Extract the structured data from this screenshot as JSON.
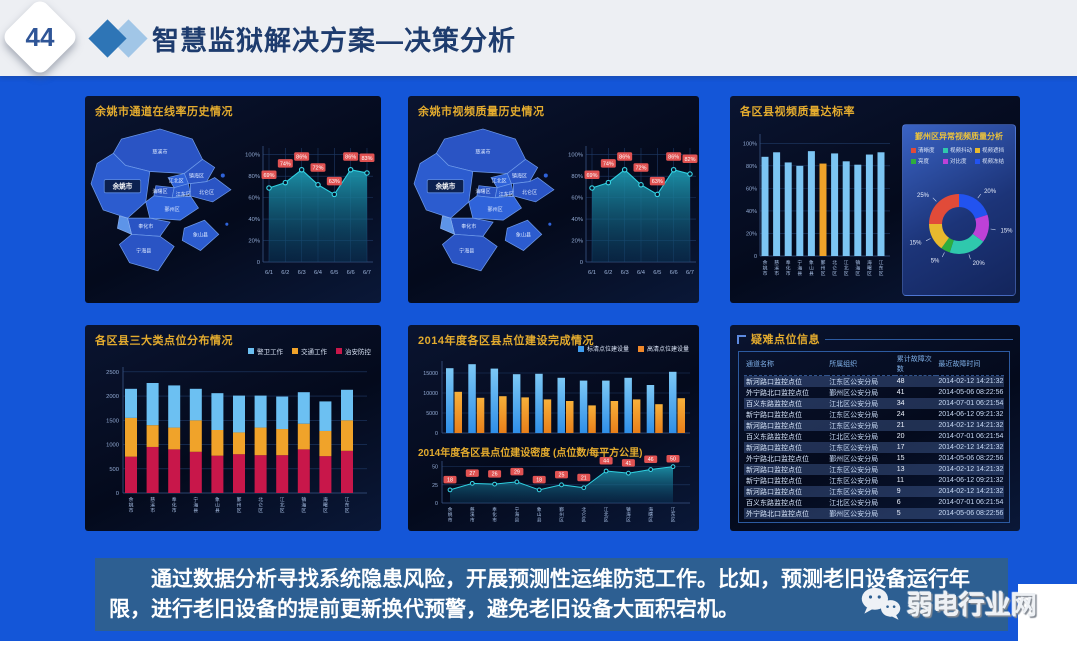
{
  "slide": {
    "number": "44",
    "title": "智慧监狱解决方案—决策分析",
    "body_text": "通过数据分析寻找系统隐患风险，开展预测性运维防范工作。比如，预测老旧设备运行年限，进行老旧设备的提前更新换代预警，避免老旧设备大面积宕机。",
    "watermark": "弱电行业网"
  },
  "colors": {
    "slide_blue": "#1456d8",
    "header_gray": "#edeff3",
    "title_navy": "#1e3c6e",
    "accent_yellow": "#e3ab2e",
    "note_blue": "#2d5f92",
    "panel_navy": "#060d20",
    "teal_line": "#2fd0e0",
    "label_red": "#e05252",
    "bar_blue": "#7cc5f3",
    "bar_orange": "#f0a32a",
    "crimson": "#c8174a",
    "sky_blue": "#6cc0f2",
    "sd_blue": "#3f9def",
    "hd_orange": "#f0882a"
  },
  "map": {
    "labels": [
      "慈溪市",
      "余姚市",
      "镇海区",
      "江北区",
      "海曙区",
      "江东区",
      "北仑区",
      "鄞州区",
      "奉化市",
      "象山县",
      "宁海县"
    ],
    "highlight": "余姚市"
  },
  "chart_data": [
    {
      "id": "channel-online-trend",
      "title": "余姚市通道在线率历史情况",
      "type": "area",
      "x": [
        "6/1",
        "6/2",
        "6/3",
        "6/4",
        "6/5",
        "6/6",
        "6/7"
      ],
      "values": [
        69,
        74,
        86,
        72,
        63,
        86,
        83
      ],
      "unit": "%",
      "ylim": [
        0,
        100
      ],
      "yticks": [
        {
          "v": 100,
          "t": "100%"
        },
        {
          "v": 80,
          "t": "80%"
        },
        {
          "v": 60,
          "t": "60%"
        },
        {
          "v": 40,
          "t": "40%"
        },
        {
          "v": 20,
          "t": "20%"
        },
        {
          "v": 0,
          "t": "0"
        }
      ],
      "grid": true,
      "legend": "none"
    },
    {
      "id": "video-quality-trend",
      "title": "余姚市视频质量历史情况",
      "type": "area",
      "x": [
        "6/1",
        "6/2",
        "6/3",
        "6/4",
        "6/5",
        "6/6",
        "6/7"
      ],
      "values": [
        69,
        74,
        86,
        72,
        63,
        86,
        82
      ],
      "unit": "%",
      "ylim": [
        0,
        100
      ],
      "yticks": [
        {
          "v": 100,
          "t": "100%"
        },
        {
          "v": 80,
          "t": "80%"
        },
        {
          "v": 60,
          "t": "60%"
        },
        {
          "v": 40,
          "t": "40%"
        },
        {
          "v": 20,
          "t": "20%"
        },
        {
          "v": 0,
          "t": "0"
        }
      ],
      "grid": true,
      "legend": "none"
    },
    {
      "id": "district-quality-rate",
      "title": "各区县视频质量达标率",
      "type": "bar",
      "categories": [
        "余姚市",
        "慈溪市",
        "奉化市",
        "宁海县",
        "象山县",
        "鄞州区",
        "北仑区",
        "江北区",
        "镇海区",
        "海曙区",
        "江东区"
      ],
      "values": [
        88,
        92,
        83,
        80,
        93,
        82,
        91,
        84,
        81,
        90,
        92
      ],
      "unit": "%",
      "highlight_index": 5,
      "ylim": [
        0,
        100
      ],
      "yticks": [
        {
          "v": 100,
          "t": "100%"
        },
        {
          "v": 80,
          "t": "80%"
        },
        {
          "v": 60,
          "t": "60%"
        },
        {
          "v": 40,
          "t": "40%"
        },
        {
          "v": 20,
          "t": "20%"
        },
        {
          "v": 0,
          "t": "0"
        }
      ]
    },
    {
      "id": "yinzhou-abnormal-quality",
      "title": "鄞州区异常视频质量分析",
      "type": "pie",
      "slices": [
        {
          "label": "视频冻结",
          "value": 20,
          "color": "#2253f0"
        },
        {
          "label": "对比度",
          "value": 15,
          "color": "#bd41d8"
        },
        {
          "label": "视频抖动",
          "value": 20,
          "color": "#2fc8ad"
        },
        {
          "label": "亮度",
          "value": 5,
          "color": "#2fae3e"
        },
        {
          "label": "视频遮挡",
          "value": 15,
          "color": "#e8b92e"
        },
        {
          "label": "清晰度",
          "value": 25,
          "color": "#e14b39"
        }
      ],
      "legend_order": [
        "清晰度",
        "视频抖动",
        "视频遮挡",
        "亮度",
        "对比度",
        "视频冻结"
      ],
      "unit": "%"
    },
    {
      "id": "three-class-points",
      "title": "各区县三大类点位分布情况",
      "type": "stacked-bar",
      "categories": [
        "余姚市",
        "慈溪市",
        "奉化市",
        "宁海县",
        "象山县",
        "鄞州区",
        "北仑区",
        "江北区",
        "镇海区",
        "海曙区",
        "江东区"
      ],
      "series": [
        {
          "name": "治安防控",
          "color": "#c8174a",
          "values": [
            750,
            950,
            900,
            850,
            770,
            800,
            780,
            780,
            900,
            760,
            870
          ]
        },
        {
          "name": "交通工作",
          "color": "#f0a32a",
          "values": [
            800,
            450,
            450,
            650,
            530,
            450,
            570,
            540,
            530,
            520,
            630
          ]
        },
        {
          "name": "警卫工作",
          "color": "#6cc0f2",
          "values": [
            600,
            870,
            870,
            650,
            760,
            760,
            660,
            670,
            650,
            610,
            630
          ]
        }
      ],
      "legend_order": [
        "警卫工作",
        "交通工作",
        "治安防控"
      ],
      "ylim": [
        0,
        2500
      ],
      "yticks": [
        {
          "v": 2500,
          "t": "2500"
        },
        {
          "v": 2000,
          "t": "2000"
        },
        {
          "v": 1500,
          "t": "1500"
        },
        {
          "v": 1000,
          "t": "1000"
        },
        {
          "v": 500,
          "t": "500"
        },
        {
          "v": 0,
          "t": "0"
        }
      ]
    },
    {
      "id": "construction-2014",
      "title": "2014年度各区县点位建设完成情况",
      "type": "bar",
      "categories": [
        "余姚市",
        "慈溪市",
        "奉化市",
        "宁海县",
        "象山县",
        "鄞州区",
        "北仑区",
        "江北区",
        "镇海区",
        "海曙区",
        "江东区"
      ],
      "series": [
        {
          "name": "标清点位建设量",
          "color": "#3f9def",
          "values": [
            16200,
            17200,
            16100,
            14700,
            14800,
            13800,
            13100,
            13100,
            13800,
            12000,
            15300
          ]
        },
        {
          "name": "高清点位建设量",
          "color": "#f0882a",
          "values": [
            10300,
            8800,
            9200,
            8900,
            8400,
            8000,
            6900,
            8000,
            8400,
            7200,
            8700
          ]
        }
      ],
      "ylim": [
        0,
        18000
      ],
      "yticks": [
        {
          "v": 15000,
          "t": "15000"
        },
        {
          "v": 10000,
          "t": "10000"
        },
        {
          "v": 5000,
          "t": "5000"
        },
        {
          "v": 0,
          "t": "0"
        }
      ]
    },
    {
      "id": "density-2014",
      "title": "2014年度各区县点位建设密度",
      "subtitle": "(点位数/每平方公里)",
      "type": "area",
      "categories": [
        "余姚市",
        "慈溪市",
        "奉化市",
        "宁海县",
        "象山县",
        "鄞州区",
        "北仑区",
        "江北区",
        "镇海区",
        "海曙区",
        "江东区"
      ],
      "values": [
        18,
        27,
        26,
        29,
        18,
        25,
        21,
        44,
        41,
        46,
        50
      ],
      "ylim": [
        0,
        50
      ],
      "yticks": [
        {
          "v": 50,
          "t": "50"
        },
        {
          "v": 25,
          "t": "25"
        },
        {
          "v": 0,
          "t": "0"
        }
      ]
    },
    {
      "id": "difficult-points",
      "title": "疑难点位信息",
      "type": "table",
      "headers": [
        "通道名称",
        "所属组织",
        "累计故障次数",
        "最近故障时间"
      ],
      "rows": [
        [
          "新河路口监控点位",
          "江东区公安分局",
          "48",
          "2014-02-12 14:21:32"
        ],
        [
          "外宁路北口监控点位",
          "鄞州区公安分局",
          "41",
          "2014-05-06 08:22:56"
        ],
        [
          "百义东路监控点位",
          "江北区公安分局",
          "34",
          "2014-07-01 06:21:54"
        ],
        [
          "新宁路口监控点位",
          "江东区公安分局",
          "24",
          "2014-06-12 09:21:32"
        ],
        [
          "新河路口监控点位",
          "江东区公安分局",
          "21",
          "2014-02-12 14:21:32"
        ],
        [
          "百义东路监控点位",
          "江北区公安分局",
          "20",
          "2014-07-01 06:21:54"
        ],
        [
          "新河路口监控点位",
          "江东区公安分局",
          "17",
          "2014-02-12 14:21:32"
        ],
        [
          "外宁路北口监控点位",
          "鄞州区公安分局",
          "15",
          "2014-05-06 08:22:56"
        ],
        [
          "新河路口监控点位",
          "江东区公安分局",
          "13",
          "2014-02-12 14:21:32"
        ],
        [
          "新宁路口监控点位",
          "江东区公安分局",
          "11",
          "2014-06-12 09:21:32"
        ],
        [
          "新河路口监控点位",
          "江东区公安分局",
          "9",
          "2014-02-12 14:21:32"
        ],
        [
          "百义东路监控点位",
          "江北区公安分局",
          "6",
          "2014-07-01 06:21:54"
        ],
        [
          "外宁路北口监控点位",
          "鄞州区公安分局",
          "5",
          "2014-05-06 08:22:56"
        ]
      ]
    }
  ]
}
